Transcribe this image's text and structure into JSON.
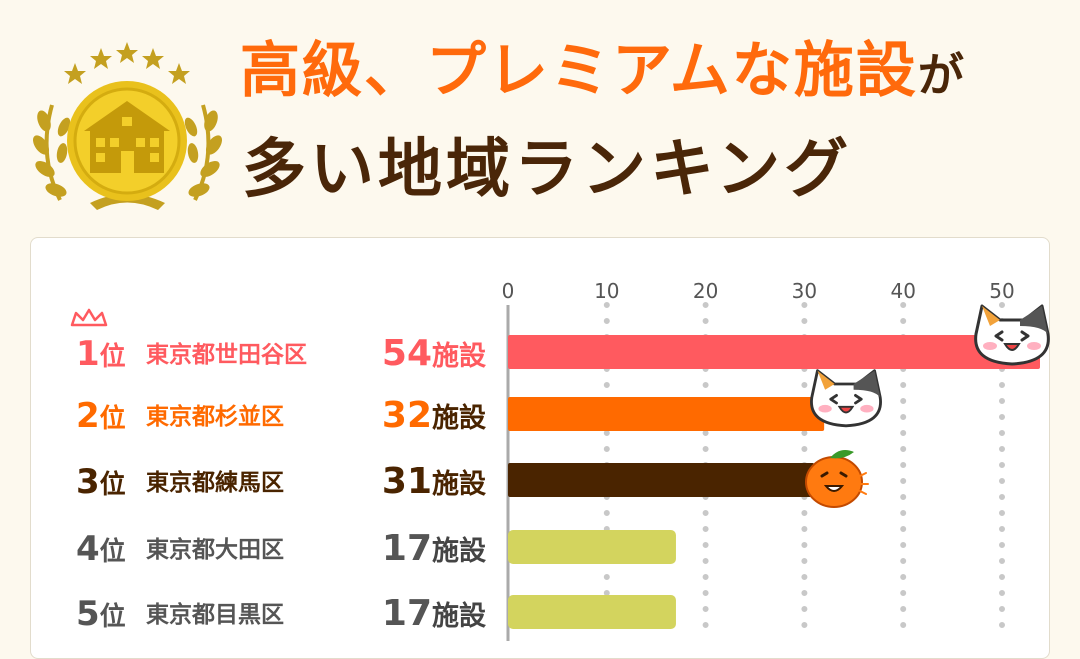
{
  "title": {
    "line1": "高級、プレミアムな施設",
    "line1_suffix": "が",
    "line2": "多い地域ランキング"
  },
  "colors": {
    "title_accent": "#ff6a0c",
    "title_dark": "#4a2608",
    "rank1": "#ff5a5f",
    "rank2": "#ff6a00",
    "rank3": "#4a2400",
    "rank_other_bar": "#d3d45e",
    "rank_other_text": "#555555",
    "grid": "#c8c8c8"
  },
  "icons": [
    "medal-icon",
    "laurel-icon",
    "star-icon",
    "building-icon",
    "crown-icon",
    "cat-icon",
    "orange-icon"
  ],
  "chart_data": {
    "type": "bar",
    "orientation": "horizontal",
    "x_ticks": [
      0,
      10,
      20,
      30,
      40,
      50
    ],
    "xlim": [
      0,
      54
    ],
    "unit_suffix": "施設",
    "rank_suffix": "位",
    "grid": true,
    "rows": [
      {
        "rank": "1",
        "area": "東京都世田谷区",
        "value": 54,
        "value_label": "54"
      },
      {
        "rank": "2",
        "area": "東京都杉並区",
        "value": 32,
        "value_label": "32"
      },
      {
        "rank": "3",
        "area": "東京都練馬区",
        "value": 31,
        "value_label": "31"
      },
      {
        "rank": "4",
        "area": "東京都大田区",
        "value": 17,
        "value_label": "17"
      },
      {
        "rank": "5",
        "area": "東京都目黒区",
        "value": 17,
        "value_label": "17"
      }
    ]
  }
}
